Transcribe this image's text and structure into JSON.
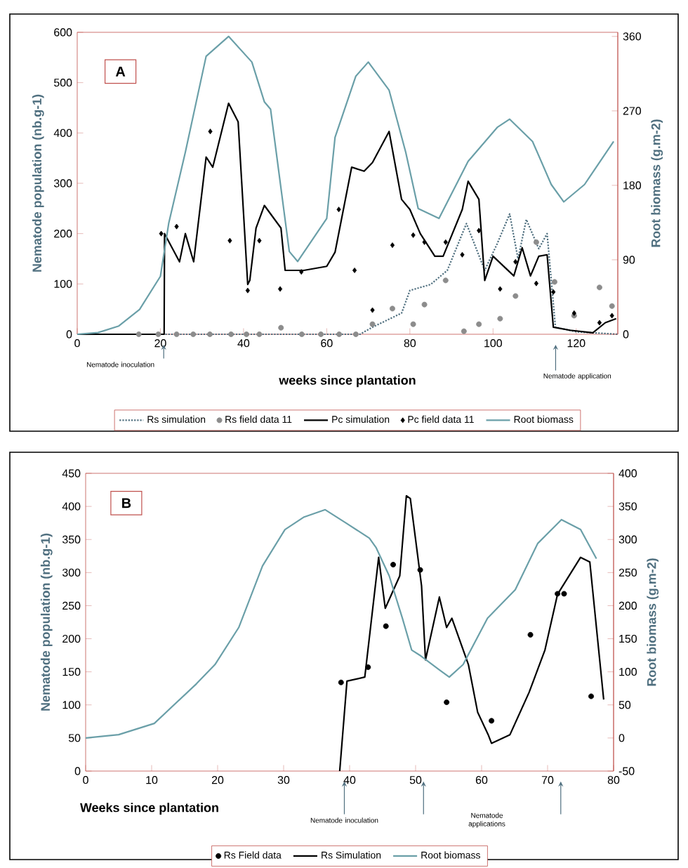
{
  "chart_data": [
    {
      "type": "line",
      "ylabel": "Nematode population (nb.g-1)",
      "y2label": "Root biomass (g.m-2)",
      "xlabel": "weeks since plantation",
      "xlim": [
        0,
        130
      ],
      "xticks": [
        0,
        20,
        40,
        60,
        80,
        100,
        120
      ],
      "ylim": [
        0,
        600
      ],
      "yticks": [
        0,
        100,
        200,
        300,
        400,
        500,
        600
      ],
      "y2lim": [
        0,
        365
      ],
      "y2ticks": [
        0,
        90,
        180,
        270,
        360
      ],
      "legend": "bottom",
      "annotations": [
        "A",
        "Nematode inoculation",
        "Nematode application"
      ],
      "series": [
        {
          "name": "Rs simulation",
          "color": "#4f6f7f",
          "line_style": "dotted",
          "marker": "none",
          "x": [
            0,
            20,
            40,
            60,
            68,
            71,
            78,
            80,
            85,
            89,
            93.6,
            98,
            101,
            104,
            106,
            108,
            111,
            113,
            115,
            120,
            130
          ],
          "values": [
            0,
            0,
            0,
            0,
            0,
            14,
            42,
            87,
            99,
            127,
            220,
            127,
            180,
            239,
            150,
            228,
            170,
            200,
            14,
            5,
            0
          ]
        },
        {
          "name": "Rs field data 11",
          "type": "scatter",
          "color": "#8c8c8c",
          "marker": "circle",
          "x": [
            14.8,
            19.5,
            23.9,
            27.9,
            31.9,
            37,
            40.7,
            43.8,
            49,
            54,
            58.6,
            63,
            67,
            71,
            75.8,
            80.8,
            83.5,
            88.6,
            93,
            96.6,
            101.7,
            105.4,
            110.4,
            114.8,
            119.5,
            125.6,
            128.6
          ],
          "values": [
            0,
            0,
            0,
            0,
            0,
            0,
            0,
            0,
            13,
            0,
            0,
            0,
            0,
            20,
            51,
            20,
            59,
            107,
            6,
            20,
            31,
            76,
            183,
            104,
            37,
            93,
            56
          ]
        },
        {
          "name": "Pc simulation",
          "color": "#000000",
          "line_style": "solid",
          "marker": "none",
          "x": [
            0,
            20.9,
            21,
            24.6,
            26,
            28,
            31,
            32.6,
            36.4,
            38.7,
            41,
            41.5,
            43,
            45,
            49,
            50,
            54.5,
            60,
            62,
            66,
            69,
            71,
            75,
            78,
            80,
            82.5,
            86,
            88,
            92.6,
            94,
            96.6,
            98,
            100,
            105,
            107,
            109,
            111,
            113,
            114.5,
            118.5,
            124,
            127,
            129.6
          ],
          "values": [
            0,
            0,
            200,
            144,
            200,
            144,
            352,
            332,
            459,
            422,
            99,
            107,
            211,
            256,
            211,
            127,
            127,
            135,
            163,
            332,
            324,
            341,
            403,
            268,
            248,
            200,
            155,
            155,
            248,
            304,
            268,
            107,
            155,
            116,
            172,
            116,
            155,
            158,
            14,
            8,
            3,
            23,
            31
          ]
        },
        {
          "name": "Pc field data 11",
          "type": "scatter",
          "color": "#000000",
          "marker": "diamond",
          "x": [
            20.2,
            23.9,
            32,
            36.7,
            41,
            43.8,
            48.8,
            53.9,
            62.9,
            66.7,
            71,
            75.8,
            80.8,
            83.5,
            88.6,
            92.6,
            96.6,
            101.7,
            105.4,
            110.4,
            114.5,
            119.5,
            125.6,
            128.6
          ],
          "values": [
            200,
            214,
            403,
            186,
            87,
            186,
            90,
            124,
            248,
            127,
            48,
            177,
            197,
            183,
            183,
            158,
            206,
            90,
            144,
            101,
            84,
            42,
            23,
            37
          ]
        },
        {
          "name": "Root biomass",
          "axis": "y2",
          "color": "#6a9fa8",
          "line_style": "solid",
          "marker": "none",
          "x": [
            0,
            5,
            10,
            15,
            20,
            22,
            26,
            31,
            36.4,
            42,
            45,
            46.5,
            51,
            53,
            60,
            62,
            67,
            70,
            75,
            79,
            82,
            87,
            94,
            101,
            104,
            109.5,
            114,
            117,
            122,
            129
          ],
          "values": [
            0,
            2,
            10,
            30,
            70,
            134,
            220,
            336,
            360,
            329,
            281,
            272,
            100,
            88,
            140,
            238,
            312,
            329,
            295,
            220,
            152,
            140,
            209,
            250,
            260,
            233,
            181,
            160,
            181,
            233
          ]
        }
      ]
    },
    {
      "type": "line",
      "ylabel": "Nematode population (nb.g-1)",
      "y2label": "Root biomass (g.m-2)",
      "xlabel": "Weeks since plantation",
      "xlim": [
        0,
        80
      ],
      "xticks": [
        0,
        10,
        20,
        30,
        40,
        50,
        60,
        70,
        80
      ],
      "ylim": [
        0,
        450
      ],
      "yticks": [
        0,
        50,
        100,
        150,
        200,
        250,
        300,
        350,
        400,
        450
      ],
      "y2lim": [
        -50,
        400
      ],
      "y2ticks": [
        -50,
        0,
        50,
        100,
        150,
        200,
        250,
        300,
        350,
        400
      ],
      "legend": "bottom",
      "annotations": [
        "B",
        "Nematode inoculation",
        "Nematode applications"
      ],
      "series": [
        {
          "name": "Rs Field data",
          "type": "scatter",
          "color": "#000000",
          "marker": "circle",
          "x": [
            38.7,
            42.8,
            45.5,
            46.6,
            50.7,
            54.7,
            61.5,
            67.4,
            71.5,
            72.5,
            76.6
          ],
          "values": [
            134,
            157,
            219,
            312,
            304,
            104,
            76,
            206,
            268,
            268,
            113
          ]
        },
        {
          "name": "Rs Simulation",
          "color": "#000000",
          "line_style": "solid",
          "marker": "none",
          "x": [
            38.5,
            39.6,
            42.3,
            44.4,
            45.4,
            47.6,
            48.6,
            49.2,
            50.9,
            51.5,
            53.6,
            54.7,
            55.5,
            58,
            59.4,
            61,
            61.5,
            64.3,
            67.2,
            69.6,
            71.5,
            75,
            76.4,
            78.5
          ],
          "values": [
            0,
            136,
            142,
            323,
            246,
            295,
            416,
            412,
            280,
            168,
            263,
            217,
            231,
            161,
            89,
            55,
            42,
            55,
            119,
            183,
            267,
            323,
            316,
            108
          ]
        },
        {
          "name": "Root biomass",
          "axis": "y2",
          "color": "#6a9fa8",
          "line_style": "solid",
          "marker": "none",
          "x": [
            0,
            5,
            10.4,
            16.8,
            19.6,
            23.2,
            26.8,
            30.2,
            33.1,
            36.3,
            39.6,
            43,
            44,
            46,
            48,
            49.4,
            50.8,
            53.6,
            55.1,
            57.2,
            60.9,
            65.1,
            68.5,
            72.1,
            75,
            77.4
          ],
          "values": [
            0,
            5,
            22,
            82,
            111,
            167,
            260,
            315,
            334,
            345,
            324,
            302,
            288,
            245,
            181,
            133,
            124,
            103,
            92,
            111,
            181,
            224,
            294,
            330,
            315,
            271
          ]
        }
      ]
    }
  ]
}
